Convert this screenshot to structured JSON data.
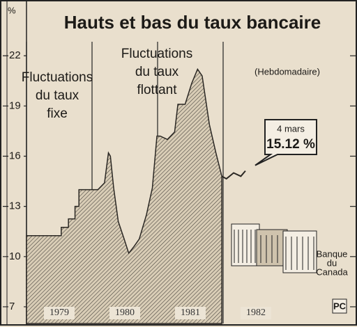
{
  "chart_data": {
    "type": "area",
    "title": "Hauts et bas du taux bancaire",
    "y_label": "%",
    "subtitle": "(Hebdomadaire)",
    "fixed_label": [
      "Fluctuations",
      "du taux",
      "fixe"
    ],
    "floating_label": [
      "Fluctuations",
      "du taux",
      "flottant"
    ],
    "callout": {
      "date": "4 mars",
      "value": 15.12,
      "value_label": "15.12 %"
    },
    "building_label": [
      "Banque",
      "du",
      "Canada"
    ],
    "logo": "PC",
    "xlim": [
      1979,
      1984
    ],
    "xticks": [
      {
        "value": 1979.5,
        "label": "1979"
      },
      {
        "value": 1980.5,
        "label": "1980"
      },
      {
        "value": 1981.5,
        "label": "1981"
      },
      {
        "value": 1982.5,
        "label": "1982"
      }
    ],
    "ylim": [
      6,
      25
    ],
    "yticks": [
      7,
      10,
      13,
      16,
      19,
      22
    ],
    "series": [
      {
        "color": "#2a2723",
        "fill": true,
        "x": [
          1979.0,
          1979.53,
          1979.53,
          1979.64,
          1979.64,
          1979.74,
          1979.74,
          1979.8,
          1979.8,
          1980.0,
          1980.09,
          1980.19,
          1980.25,
          1980.28,
          1980.33,
          1980.4,
          1980.49,
          1980.56,
          1980.64,
          1980.72,
          1980.83,
          1980.92,
          1980.99,
          1981.04,
          1981.15,
          1981.26,
          1981.31,
          1981.42,
          1981.52,
          1981.61,
          1981.68,
          1981.79,
          1981.89,
          1981.98
        ],
        "values": [
          11.25,
          11.25,
          11.75,
          11.75,
          12.25,
          12.25,
          13.0,
          13.0,
          14.0,
          14.0,
          14.0,
          14.4,
          16.2,
          16.0,
          14.1,
          12.1,
          11.05,
          10.2,
          10.6,
          11.05,
          12.5,
          14.1,
          17.2,
          17.2,
          17.0,
          17.45,
          19.1,
          19.1,
          20.35,
          21.2,
          20.8,
          17.9,
          16.2,
          14.8
        ]
      },
      {
        "color": "#2a2723",
        "fill": false,
        "x": [
          1981.98,
          1982.05,
          1982.16,
          1982.27,
          1982.34
        ],
        "values": [
          14.8,
          14.65,
          15.0,
          14.8,
          15.12
        ]
      }
    ]
  }
}
